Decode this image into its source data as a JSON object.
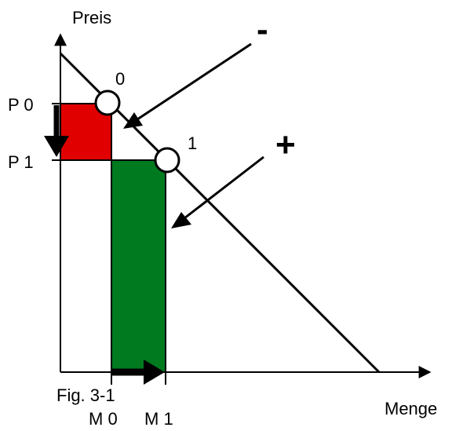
{
  "axes": {
    "y_label": "Preis",
    "x_label": "Menge"
  },
  "prices": {
    "p0": "P 0",
    "p1": "P 1"
  },
  "quantities": {
    "m0": "M 0",
    "m1": "M 1"
  },
  "points": {
    "point0": "0",
    "point1": "1"
  },
  "signs": {
    "minus": "-",
    "plus": "+"
  },
  "caption": "Fig. 3-1",
  "colors": {
    "loss_area": "#e00000",
    "gain_area": "#007a1f",
    "ink": "#000000"
  }
}
